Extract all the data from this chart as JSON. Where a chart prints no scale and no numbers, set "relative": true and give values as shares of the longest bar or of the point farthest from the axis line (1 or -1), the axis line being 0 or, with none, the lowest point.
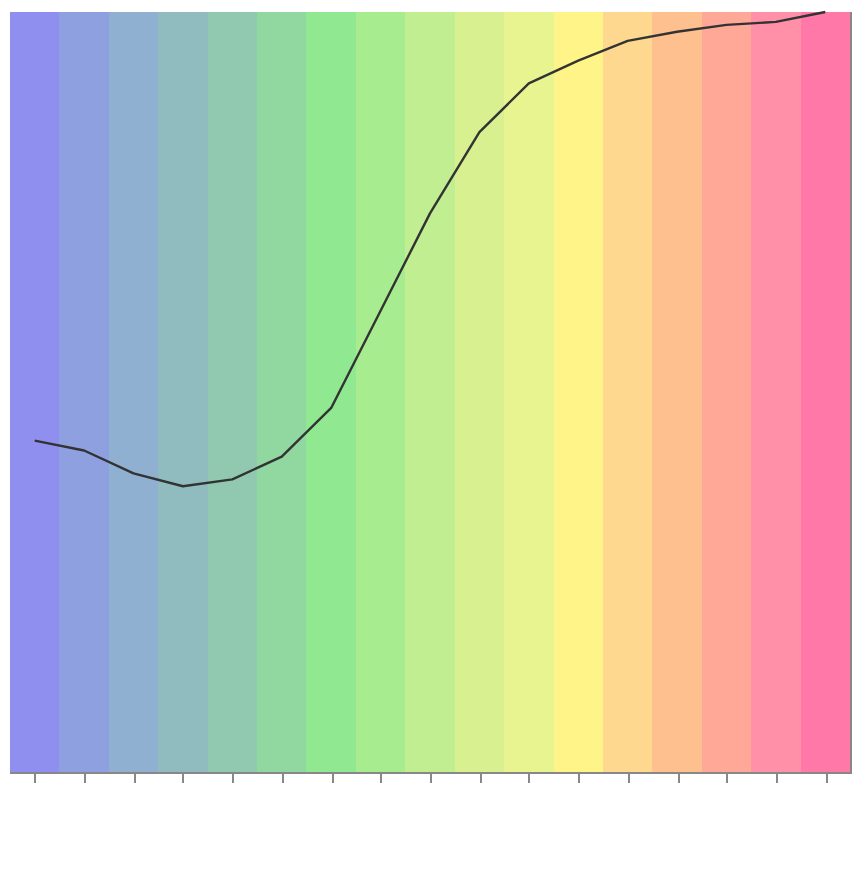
{
  "chart_data": {
    "type": "line",
    "relative": true,
    "categories": [
      null,
      null,
      null,
      null,
      null,
      null,
      null,
      null,
      null,
      null,
      null,
      null,
      null,
      null,
      null,
      null,
      null
    ],
    "series": [
      {
        "color": "#333333",
        "values": [
          0.436,
          0.423,
          0.393,
          0.376,
          0.385,
          0.415,
          0.479,
          0.607,
          0.735,
          0.842,
          0.906,
          0.936,
          0.962,
          0.974,
          0.983,
          0.987,
          1.0
        ]
      }
    ]
  }
}
